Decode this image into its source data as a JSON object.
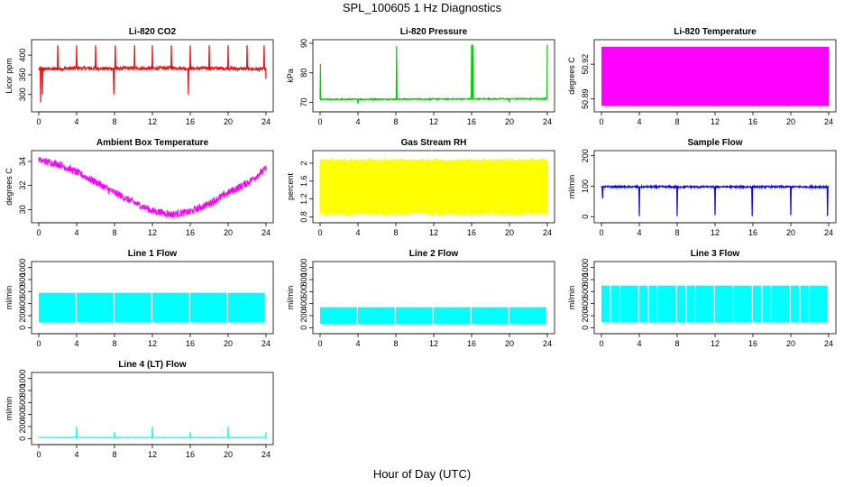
{
  "figure": {
    "title": "SPL_100605  1 Hz Diagnostics",
    "x_title": "Hour of Day (UTC)"
  },
  "chart_data": [
    {
      "type": "line",
      "title": "Li-820 CO2",
      "ylabel": "Licor ppm",
      "color": "#ff0000",
      "xlim": [
        0,
        24
      ],
      "ylim": [
        265,
        430
      ],
      "yticks": [
        300,
        350,
        400
      ],
      "xticks": [
        0,
        4,
        8,
        12,
        16,
        20,
        24
      ],
      "base": [
        [
          0,
          365
        ],
        [
          2,
          365
        ],
        [
          4,
          367
        ],
        [
          6,
          366
        ],
        [
          8,
          366
        ],
        [
          10,
          367
        ],
        [
          12,
          366
        ],
        [
          14,
          368
        ],
        [
          16,
          366
        ],
        [
          18,
          367
        ],
        [
          20,
          366
        ],
        [
          22,
          365
        ],
        [
          24,
          364
        ]
      ],
      "noise": 4,
      "spikes": [
        [
          0.2,
          280
        ],
        [
          0.4,
          300
        ],
        [
          2.0,
          425
        ],
        [
          4.0,
          425
        ],
        [
          6.0,
          425
        ],
        [
          7.9,
          300
        ],
        [
          8.1,
          425
        ],
        [
          10.1,
          425
        ],
        [
          12.0,
          425
        ],
        [
          14.0,
          425
        ],
        [
          15.8,
          300
        ],
        [
          16.0,
          425
        ],
        [
          18.0,
          425
        ],
        [
          20.0,
          425
        ],
        [
          22.0,
          425
        ],
        [
          23.8,
          425
        ],
        [
          24.0,
          340
        ]
      ]
    },
    {
      "type": "line",
      "title": "Li-820 Pressure",
      "ylabel": "kPa",
      "color": "#00cc00",
      "xlim": [
        0,
        24
      ],
      "ylim": [
        68,
        90
      ],
      "yticks": [
        70,
        80,
        90
      ],
      "xticks": [
        0,
        4,
        8,
        12,
        16,
        20,
        24
      ],
      "base": [
        [
          0,
          71
        ],
        [
          24,
          71.2
        ]
      ],
      "noise": 0.2,
      "spikes": [
        [
          0.05,
          83
        ],
        [
          4.0,
          69.5
        ],
        [
          8.1,
          89
        ],
        [
          16.0,
          89.5
        ],
        [
          16.1,
          89.5
        ],
        [
          20.0,
          70
        ],
        [
          24.0,
          89.5
        ],
        [
          24.1,
          70
        ]
      ]
    },
    {
      "type": "band",
      "title": "Li-820 Temperature",
      "ylabel": "degrees C",
      "color": "#ff00ff",
      "xlim": [
        0,
        24
      ],
      "ylim": [
        50.882,
        50.938
      ],
      "yticks": [
        50.89,
        50.92
      ],
      "xticks": [
        0,
        4,
        8,
        12,
        16,
        20,
        24
      ],
      "band": [
        50.884,
        50.935
      ]
    },
    {
      "type": "line",
      "title": "Ambient Box Temperature",
      "ylabel": "degrees C",
      "color": "#ff00ff",
      "xlim": [
        0,
        24
      ],
      "ylim": [
        29.2,
        34.6
      ],
      "yticks": [
        30,
        32,
        34
      ],
      "xticks": [
        0,
        4,
        8,
        12,
        16,
        20,
        24
      ],
      "base": [
        [
          0,
          34.1
        ],
        [
          2,
          33.8
        ],
        [
          4,
          33.1
        ],
        [
          6,
          32.3
        ],
        [
          8,
          31.4
        ],
        [
          10,
          30.6
        ],
        [
          12,
          29.9
        ],
        [
          14,
          29.6
        ],
        [
          16,
          29.8
        ],
        [
          18,
          30.5
        ],
        [
          20,
          31.4
        ],
        [
          22,
          32.2
        ],
        [
          24,
          33.4
        ]
      ],
      "noise": 0.3,
      "spikes": []
    },
    {
      "type": "band",
      "title": "Gas Stream RH",
      "ylabel": "percent",
      "color": "#ffff00",
      "xlim": [
        0,
        24
      ],
      "ylim": [
        0.75,
        2.2
      ],
      "yticks": [
        0.8,
        1.2,
        1.6,
        2.0
      ],
      "xticks": [
        0,
        4,
        8,
        12,
        16,
        20,
        24
      ],
      "band": [
        0.9,
        2.05
      ]
    },
    {
      "type": "line",
      "title": "Sample Flow",
      "ylabel": "ml/min",
      "color": "#0000ff",
      "xlim": [
        0,
        24
      ],
      "ylim": [
        -8,
        205
      ],
      "yticks": [
        0,
        100,
        200
      ],
      "xticks": [
        0,
        4,
        8,
        12,
        16,
        20,
        24
      ],
      "base": [
        [
          0,
          98
        ],
        [
          24,
          98
        ]
      ],
      "noise": 3,
      "spikes": [
        [
          0.1,
          60
        ],
        [
          4.0,
          2
        ],
        [
          8.0,
          2
        ],
        [
          12.0,
          5
        ],
        [
          15.9,
          2
        ],
        [
          20.0,
          5
        ],
        [
          23.9,
          2
        ]
      ]
    },
    {
      "type": "band",
      "title": "Line 1 Flow",
      "ylabel": "ml/min",
      "color": "#00ffff",
      "xlim": [
        0,
        24
      ],
      "ylim": [
        -40,
        1040
      ],
      "yticks": [
        0,
        200,
        400,
        600,
        800,
        1000
      ],
      "xticks": [
        0,
        4,
        8,
        12,
        16,
        20,
        24
      ],
      "band": [
        90,
        580
      ],
      "gaps": [
        4.0,
        8.0,
        12.0,
        16.0,
        20.0,
        24.0
      ]
    },
    {
      "type": "band",
      "title": "Line 2 Flow",
      "ylabel": "ml/min",
      "color": "#00ffff",
      "xlim": [
        0,
        24
      ],
      "ylim": [
        -40,
        1040
      ],
      "yticks": [
        0,
        200,
        400,
        600,
        800,
        1000
      ],
      "xticks": [
        0,
        4,
        8,
        12,
        16,
        20,
        24
      ],
      "band": [
        60,
        340
      ],
      "gaps": [
        4.0,
        8.0,
        12.0,
        16.0,
        20.0,
        24.0
      ]
    },
    {
      "type": "band",
      "title": "Line 3 Flow",
      "ylabel": "ml/min",
      "color": "#00ffff",
      "xlim": [
        0,
        24
      ],
      "ylim": [
        -40,
        1040
      ],
      "yticks": [
        0,
        200,
        400,
        600,
        800,
        1000
      ],
      "xticks": [
        0,
        4,
        8,
        12,
        16,
        20,
        24
      ],
      "band": [
        90,
        700
      ],
      "gaps": [
        1.0,
        2.0,
        4.0,
        5.0,
        6.0,
        8.0,
        9.0,
        10.0,
        12.0,
        14.0,
        16.0,
        17.0,
        18.0,
        20.0,
        21.0,
        22.0,
        24.0
      ]
    },
    {
      "type": "line",
      "title": "Line 4 (LT) Flow",
      "ylabel": "ml/min",
      "color": "#00ffff",
      "xlim": [
        0,
        24
      ],
      "ylim": [
        -40,
        1040
      ],
      "yticks": [
        0,
        200,
        400,
        600,
        800,
        1000
      ],
      "xticks": [
        0,
        4,
        8,
        12,
        16,
        20,
        24
      ],
      "base": [
        [
          0,
          18
        ],
        [
          24,
          18
        ]
      ],
      "noise": 3,
      "spikes": [
        [
          4.0,
          200
        ],
        [
          8.0,
          110
        ],
        [
          12.0,
          200
        ],
        [
          16.0,
          110
        ],
        [
          20.0,
          200
        ],
        [
          24.0,
          110
        ]
      ]
    }
  ]
}
